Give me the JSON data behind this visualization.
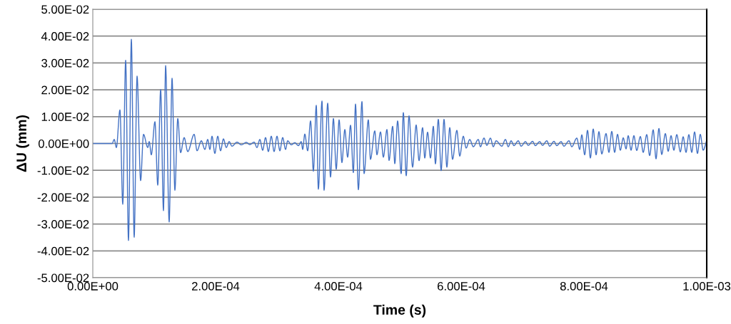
{
  "chart_data": {
    "type": "line",
    "xlabel": "Time (s)",
    "ylabel": "ΔU (mm)",
    "grid": "y",
    "legend": false,
    "marker": "none",
    "line_style": "solid",
    "xlim": [
      0,
      0.001
    ],
    "ylim": [
      -0.05,
      0.05
    ],
    "xticks": [
      {
        "value": 0,
        "label": "0.00E+00"
      },
      {
        "value": 0.0002,
        "label": "2.00E-04"
      },
      {
        "value": 0.0004,
        "label": "4.00E-04"
      },
      {
        "value": 0.0006,
        "label": "6.00E-04"
      },
      {
        "value": 0.0008,
        "label": "8.00E-04"
      },
      {
        "value": 0.001,
        "label": "1.00E-03"
      }
    ],
    "yticks": [
      {
        "value": -0.05,
        "label": "-5.00E-02"
      },
      {
        "value": -0.04,
        "label": "-4.00E-02"
      },
      {
        "value": -0.03,
        "label": "-3.00E-02"
      },
      {
        "value": -0.02,
        "label": "-2.00E-02"
      },
      {
        "value": -0.01,
        "label": "-1.00E-02"
      },
      {
        "value": 0,
        "label": "0.00E+00"
      },
      {
        "value": 0.01,
        "label": "1.00E-02"
      },
      {
        "value": 0.02,
        "label": "2.00E-02"
      },
      {
        "value": 0.03,
        "label": "3.00E-02"
      },
      {
        "value": 0.04,
        "label": "4.00E-02"
      },
      {
        "value": 0.05,
        "label": "5.00E-02"
      }
    ],
    "series": [
      {
        "color": "#4472c4",
        "x": [
          0,
          3.14e-05,
          3.49e-05,
          3.84e-05,
          4.42e-05,
          4.88e-05,
          5.35e-05,
          5.81e-05,
          6.28e-05,
          6.74e-05,
          7.21e-05,
          7.79e-05,
          8.26e-05,
          8.95e-05,
          9.19e-05,
          9.53e-05,
          0.0001012,
          0.0001058,
          0.0001105,
          0.0001151,
          0.0001186,
          0.0001244,
          0.0001291,
          0.0001337,
          0.0001384,
          0.000143,
          0.0001488,
          0.0001547,
          0.0001651,
          0.0001698,
          0.0001767,
          0.0001826,
          0.0001872,
          0.0001907,
          0.0001942,
          0.0001988,
          0.0002035,
          0.0002081,
          0.0002128,
          0.0002174,
          0.0002221,
          0.0002267,
          0.0002349,
          0.0002419,
          0.00025,
          0.0002558,
          0.0002628,
          0.0002674,
          0.0002721,
          0.0002767,
          0.0002814,
          0.000286,
          0.0002907,
          0.0002953,
          0.0003,
          0.0003047,
          0.0003093,
          0.000314,
          0.0003174,
          0.0003233,
          0.0003291,
          0.0003349,
          0.0003395,
          0.0003419,
          0.0003453,
          0.00035,
          0.0003547,
          0.0003593,
          0.000364,
          0.0003674,
          0.0003733,
          0.0003767,
          0.0003826,
          0.0003872,
          0.0003919,
          0.0003965,
          0.0004012,
          0.0004058,
          0.0004105,
          0.0004151,
          0.0004198,
          0.0004244,
          0.0004279,
          0.0004326,
          0.0004384,
          0.0004419,
          0.0004488,
          0.0004523,
          0.0004593,
          0.0004628,
          0.0004686,
          0.0004733,
          0.0004791,
          0.0004826,
          0.0004884,
          0.0004919,
          0.0004965,
          0.0005023,
          0.0005058,
          0.0005105,
          0.0005151,
          0.0005209,
          0.0005267,
          0.0005314,
          0.0005372,
          0.0005407,
          0.0005453,
          0.00055,
          0.0005547,
          0.0005581,
          0.0005628,
          0.0005674,
          0.0005721,
          0.0005767,
          0.0005814,
          0.000586,
          0.000593,
          0.0005977,
          0.0006035,
          0.0006081,
          0.000614,
          0.0006198,
          0.0006279,
          0.0006314,
          0.0006372,
          0.0006419,
          0.0006477,
          0.0006523,
          0.000657,
          0.0006663,
          0.0006721,
          0.0006767,
          0.0006814,
          0.000686,
          0.000693,
          0.0006977,
          0.0007047,
          0.0007093,
          0.0007163,
          0.0007209,
          0.0007279,
          0.0007326,
          0.0007395,
          0.0007442,
          0.0007512,
          0.0007558,
          0.0007628,
          0.0007674,
          0.0007756,
          0.0007802,
          0.0007884,
          0.000793,
          0.0007965,
          0.0008012,
          0.0008058,
          0.0008105,
          0.0008151,
          0.0008198,
          0.0008244,
          0.0008291,
          0.000836,
          0.0008407,
          0.0008453,
          0.00085,
          0.0008547,
          0.0008593,
          0.000864,
          0.0008686,
          0.0008721,
          0.0008767,
          0.0008814,
          0.000886,
          0.0008919,
          0.0008965,
          0.0009023,
          0.000907,
          0.0009128,
          0.0009174,
          0.0009221,
          0.0009267,
          0.0009326,
          0.0009372,
          0.0009419,
          0.0009465,
          0.0009512,
          0.000957,
          0.0009616,
          0.0009663,
          0.0009709,
          0.0009756,
          0.0009802,
          0.0009849,
          0.0009895,
          0.0009942,
          0.001
        ],
        "values": [
          0,
          0,
          0.0015,
          -0.0015,
          0.0125,
          -0.0226,
          0.031,
          -0.0361,
          0.0388,
          -0.0349,
          0.0251,
          -0.0138,
          0.0034,
          -0.0015,
          0.0007,
          -0.0042,
          0.0081,
          -0.0155,
          0.0201,
          -0.025,
          0.029,
          -0.0292,
          0.0243,
          -0.0174,
          0.0093,
          -0.0034,
          0.0022,
          -0.003,
          0.0034,
          -0.0027,
          0.001,
          -0.0022,
          0.0015,
          -0.0022,
          0.0027,
          -0.0037,
          0.0027,
          -0.0027,
          0.0017,
          -0.0015,
          0.0007,
          -0.001,
          0.0005,
          -0.0005,
          0.0004,
          -0.0004,
          0.0005,
          -0.0015,
          0.0015,
          -0.0025,
          0.0022,
          -0.003,
          0.0027,
          -0.003,
          0.0027,
          -0.0027,
          0.0022,
          -0.0022,
          0.001,
          -0.0005,
          0.0003,
          -0.0008,
          0.0007,
          -0.0022,
          0.0035,
          -0.0027,
          0.0084,
          -0.0103,
          0.0142,
          -0.017,
          0.0158,
          -0.0174,
          0.015,
          -0.0125,
          0.0093,
          -0.0096,
          0.0088,
          -0.0071,
          0.0052,
          -0.0051,
          0.0068,
          -0.0108,
          0.0147,
          -0.0172,
          0.0156,
          -0.0112,
          0.0088,
          -0.0059,
          0.0047,
          -0.0042,
          0.0043,
          -0.0051,
          0.0052,
          -0.0063,
          0.0064,
          -0.0075,
          0.0084,
          -0.0112,
          0.0115,
          -0.012,
          0.0103,
          -0.0088,
          0.0069,
          -0.0064,
          0.0059,
          -0.0054,
          0.0042,
          -0.0054,
          0.0064,
          -0.0076,
          0.009,
          -0.0101,
          0.009,
          -0.0088,
          0.0059,
          -0.0059,
          0.0049,
          -0.0047,
          0.0027,
          -0.0017,
          0.0015,
          -0.0012,
          0.0015,
          -0.0012,
          0.002,
          -0.0007,
          0.002,
          -0.0012,
          0.001,
          -0.001,
          0.0015,
          -0.0012,
          0.001,
          -0.0008,
          0.001,
          -0.001,
          0.0007,
          -0.0007,
          0.0008,
          -0.0008,
          0.0007,
          -0.0007,
          0.001,
          -0.001,
          0.0008,
          -0.0008,
          0.0007,
          -0.001,
          0.001,
          -0.0012,
          0.002,
          -0.0022,
          0.0032,
          -0.0042,
          0.0049,
          -0.0054,
          0.0054,
          -0.0042,
          0.0044,
          -0.0039,
          0.0037,
          -0.0033,
          0.0045,
          -0.0033,
          0.0034,
          -0.0025,
          0.0021,
          -0.002,
          0.0029,
          -0.0025,
          0.0029,
          -0.0026,
          0.0026,
          -0.0033,
          0.0033,
          -0.0045,
          0.0051,
          -0.0057,
          0.0056,
          -0.0041,
          0.0037,
          -0.0029,
          0.0029,
          -0.0025,
          0.0033,
          -0.0031,
          0.0025,
          -0.0033,
          0.0033,
          -0.0033,
          0.0043,
          -0.0037,
          0.0034,
          -0.0025,
          0.0012
        ]
      }
    ]
  }
}
